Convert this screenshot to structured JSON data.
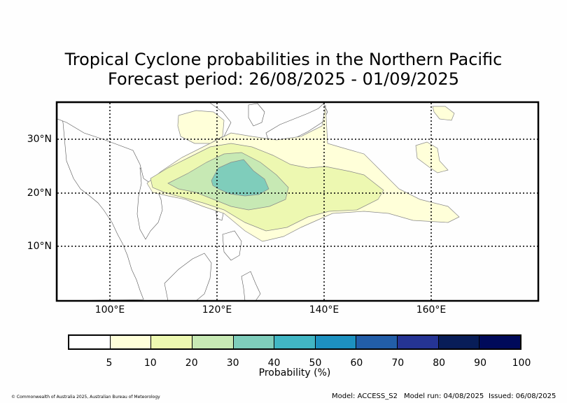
{
  "title": {
    "line1": "Tropical Cyclone probabilities in the Northern Pacific",
    "line2": "Forecast period: 26/08/2025 - 01/09/2025"
  },
  "map": {
    "lat_labels": [
      "30°N",
      "20°N",
      "10°N"
    ],
    "lon_labels": [
      "100°E",
      "120°E",
      "140°E",
      "160°E"
    ],
    "gridlines": "dotted",
    "land_outline_color": "#555555",
    "contour_edge_color": "#888888"
  },
  "colorbar": {
    "label": "Probability (%)",
    "ticks": [
      "5",
      "10",
      "20",
      "30",
      "40",
      "50",
      "60",
      "70",
      "80",
      "90",
      "100"
    ],
    "colors": [
      "#ffffff",
      "#ffffd9",
      "#edf8b1",
      "#c7e9b4",
      "#7fcdbb",
      "#41b6c4",
      "#1d91c0",
      "#225ea8",
      "#253494",
      "#081d58",
      "#000a5a"
    ]
  },
  "footer": {
    "copyright": "© Commonwealth of Australia 2025, Australian Bureau of Meteorology",
    "model": "Model: ACCESS_S2",
    "model_run": "Model run: 04/08/2025",
    "issued": "Issued: 06/08/2025"
  }
}
